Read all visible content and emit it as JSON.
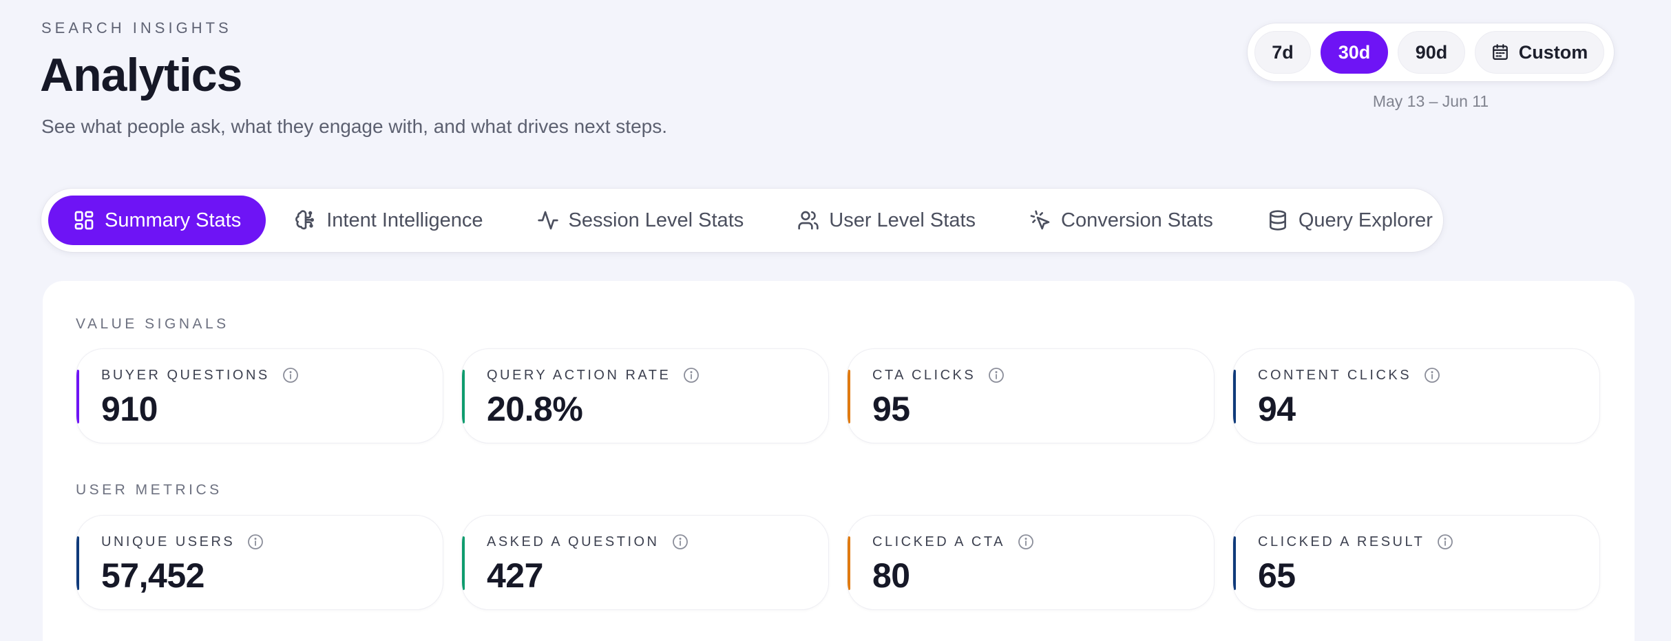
{
  "header": {
    "eyebrow": "SEARCH INSIGHTS",
    "title": "Analytics",
    "subtitle": "See what people ask, what they engage with, and what drives next steps."
  },
  "range": {
    "options": [
      "7d",
      "30d",
      "90d"
    ],
    "custom_label": "Custom",
    "selected": "30d",
    "date_range": "May 13 – Jun 11"
  },
  "tabs": [
    {
      "label": "Summary Stats",
      "icon": "grid-icon",
      "active": true
    },
    {
      "label": "Intent Intelligence",
      "icon": "brain-icon",
      "active": false
    },
    {
      "label": "Session Level Stats",
      "icon": "activity-icon",
      "active": false
    },
    {
      "label": "User Level Stats",
      "icon": "users-icon",
      "active": false
    },
    {
      "label": "Conversion Stats",
      "icon": "pointer-click-icon",
      "active": false
    },
    {
      "label": "Query Explorer",
      "icon": "database-icon",
      "active": false
    }
  ],
  "sections": {
    "value_signals": {
      "label": "VALUE SIGNALS",
      "cards": [
        {
          "label": "BUYER QUESTIONS",
          "value": "910",
          "accent": "#6e14f5"
        },
        {
          "label": "QUERY ACTION RATE",
          "value": "20.8%",
          "accent": "#0f9c6e"
        },
        {
          "label": "CTA CLICKS",
          "value": "95",
          "accent": "#e07a10"
        },
        {
          "label": "CONTENT CLICKS",
          "value": "94",
          "accent": "#0f3a7a"
        }
      ]
    },
    "user_metrics": {
      "label": "USER METRICS",
      "cards": [
        {
          "label": "UNIQUE USERS",
          "value": "57,452",
          "accent": "#0f3a7a"
        },
        {
          "label": "ASKED A QUESTION",
          "value": "427",
          "accent": "#0f9c6e"
        },
        {
          "label": "CLICKED A CTA",
          "value": "80",
          "accent": "#e07a10"
        },
        {
          "label": "CLICKED A RESULT",
          "value": "65",
          "accent": "#0f3a7a"
        }
      ]
    }
  },
  "colors": {
    "brand": "#6e14f5",
    "background": "#f3f4fb"
  }
}
